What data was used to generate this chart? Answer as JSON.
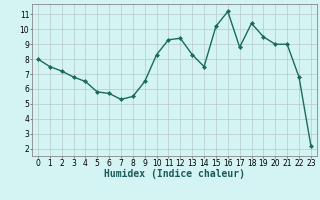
{
  "x": [
    0,
    1,
    2,
    3,
    4,
    5,
    6,
    7,
    8,
    9,
    10,
    11,
    12,
    13,
    14,
    15,
    16,
    17,
    18,
    19,
    20,
    21,
    22,
    23
  ],
  "y": [
    8.0,
    7.5,
    7.2,
    6.8,
    6.5,
    5.8,
    5.7,
    5.3,
    5.5,
    6.5,
    8.3,
    9.3,
    9.4,
    8.3,
    7.5,
    10.2,
    11.2,
    8.8,
    10.4,
    9.5,
    9.0,
    9.0,
    6.8,
    2.2
  ],
  "line_color": "#1a6b5a",
  "marker": "D",
  "marker_size": 2.0,
  "bg_color": "#d4f4f4",
  "grid_color": "#b8c8c8",
  "xlabel": "Humidex (Indice chaleur)",
  "ylabel": "",
  "xlim": [
    -0.5,
    23.5
  ],
  "ylim": [
    1.5,
    11.7
  ],
  "yticks": [
    2,
    3,
    4,
    5,
    6,
    7,
    8,
    9,
    10,
    11
  ],
  "xticks": [
    0,
    1,
    2,
    3,
    4,
    5,
    6,
    7,
    8,
    9,
    10,
    11,
    12,
    13,
    14,
    15,
    16,
    17,
    18,
    19,
    20,
    21,
    22,
    23
  ],
  "tick_fontsize": 5.5,
  "xlabel_fontsize": 7.0,
  "line_width": 1.0
}
